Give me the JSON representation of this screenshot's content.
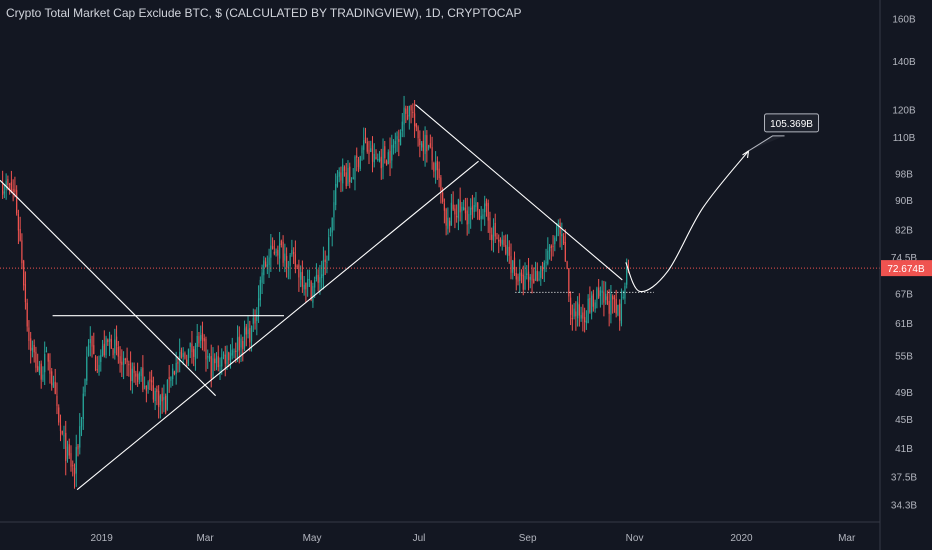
{
  "chart_data": {
    "type": "candlestick",
    "title": "Crypto Total Market Cap Exclude BTC, $ (CALCULATED BY TRADINGVIEW), 1D, CRYPTOCAP",
    "y_scale": "log",
    "ylim": [
      32.5,
      170
    ],
    "y_ticks": [
      "160B",
      "140B",
      "120B",
      "110B",
      "98B",
      "90B",
      "82B",
      "74.5B",
      "67B",
      "61B",
      "55B",
      "49B",
      "45B",
      "41B",
      "37.5B",
      "34.3B"
    ],
    "y_tick_values": [
      160,
      140,
      120,
      110,
      98,
      90,
      82,
      74.5,
      67,
      61,
      55,
      49,
      45,
      41,
      37.5,
      34.3
    ],
    "x_ticks": [
      "2019",
      "Mar",
      "May",
      "Jul",
      "Sep",
      "Nov",
      "2020",
      "Mar"
    ],
    "x_tick_dates": [
      "2019-01-01",
      "2019-03-01",
      "2019-05-01",
      "2019-07-01",
      "2019-09-01",
      "2019-11-01",
      "2020-01-01",
      "2020-03-01"
    ],
    "xlim": [
      "2018-11-04",
      "2020-03-20"
    ],
    "price_series": [
      [
        "2018-11-05",
        95
      ],
      [
        "2018-11-12",
        92
      ],
      [
        "2018-11-16",
        75
      ],
      [
        "2018-11-20",
        58
      ],
      [
        "2018-11-26",
        52
      ],
      [
        "2018-12-01",
        55
      ],
      [
        "2018-12-07",
        44
      ],
      [
        "2018-12-12",
        40
      ],
      [
        "2018-12-16",
        38
      ],
      [
        "2018-12-20",
        46
      ],
      [
        "2018-12-24",
        58
      ],
      [
        "2018-12-28",
        54
      ],
      [
        "2019-01-06",
        58
      ],
      [
        "2019-01-12",
        53
      ],
      [
        "2019-01-25",
        51
      ],
      [
        "2019-02-06",
        47
      ],
      [
        "2019-02-08",
        52
      ],
      [
        "2019-02-20",
        56
      ],
      [
        "2019-02-25",
        58
      ],
      [
        "2019-03-04",
        53
      ],
      [
        "2019-03-15",
        56
      ],
      [
        "2019-03-28",
        60
      ],
      [
        "2019-04-02",
        72
      ],
      [
        "2019-04-10",
        78
      ],
      [
        "2019-04-20",
        74
      ],
      [
        "2019-04-30",
        68
      ],
      [
        "2019-05-08",
        73
      ],
      [
        "2019-05-12",
        85
      ],
      [
        "2019-05-16",
        100
      ],
      [
        "2019-05-22",
        96
      ],
      [
        "2019-05-30",
        108
      ],
      [
        "2019-06-05",
        102
      ],
      [
        "2019-06-15",
        105
      ],
      [
        "2019-06-22",
        118
      ],
      [
        "2019-06-26",
        122
      ],
      [
        "2019-06-29",
        110
      ],
      [
        "2019-07-05",
        108
      ],
      [
        "2019-07-12",
        95
      ],
      [
        "2019-07-16",
        82
      ],
      [
        "2019-07-20",
        88
      ],
      [
        "2019-07-30",
        86
      ],
      [
        "2019-08-06",
        88
      ],
      [
        "2019-08-12",
        81
      ],
      [
        "2019-08-20",
        76
      ],
      [
        "2019-08-28",
        69
      ],
      [
        "2019-09-05",
        71
      ],
      [
        "2019-09-12",
        75
      ],
      [
        "2019-09-18",
        82
      ],
      [
        "2019-09-22",
        75
      ],
      [
        "2019-09-25",
        63
      ],
      [
        "2019-10-02",
        63
      ],
      [
        "2019-10-10",
        66
      ],
      [
        "2019-10-18",
        65
      ],
      [
        "2019-10-23",
        62
      ],
      [
        "2019-10-26",
        71
      ],
      [
        "2019-10-29",
        74
      ]
    ],
    "annotations": {
      "current_price": 72.674,
      "current_label": "72.674B",
      "current_label_top": "74.5B",
      "target_label": "105.369B",
      "trendlines": [
        {
          "from": [
            "2018-11-04",
            96
          ],
          "to": [
            "2019-03-07",
            48.5
          ]
        },
        {
          "from": [
            "2018-12-18",
            36
          ],
          "to": [
            "2019-08-04",
            102
          ]
        },
        {
          "from": [
            "2019-06-29",
            122
          ],
          "to": [
            "2019-10-25",
            70
          ]
        },
        {
          "from": [
            "2018-12-04",
            62.5
          ],
          "to": [
            "2019-04-15",
            62.5
          ]
        }
      ],
      "dotted_supports": [
        {
          "from": [
            "2019-08-25",
            67.3
          ],
          "to": [
            "2019-09-28",
            67.3
          ]
        },
        {
          "from": [
            "2019-10-17",
            67.3
          ],
          "to": [
            "2019-11-12",
            67.3
          ]
        }
      ],
      "projection": [
        [
          "2019-10-27",
          74
        ],
        [
          "2019-11-04",
          67.5
        ],
        [
          "2019-11-20",
          72
        ],
        [
          "2019-12-10",
          88
        ],
        [
          "2020-01-05",
          105.369
        ]
      ]
    }
  },
  "colors": {
    "background": "#131722",
    "up": "#26a69a",
    "down": "#ef5350",
    "lines": "#ffffff",
    "price_label_bg": "#ef5350",
    "target_box_bg": "#1e222d"
  }
}
